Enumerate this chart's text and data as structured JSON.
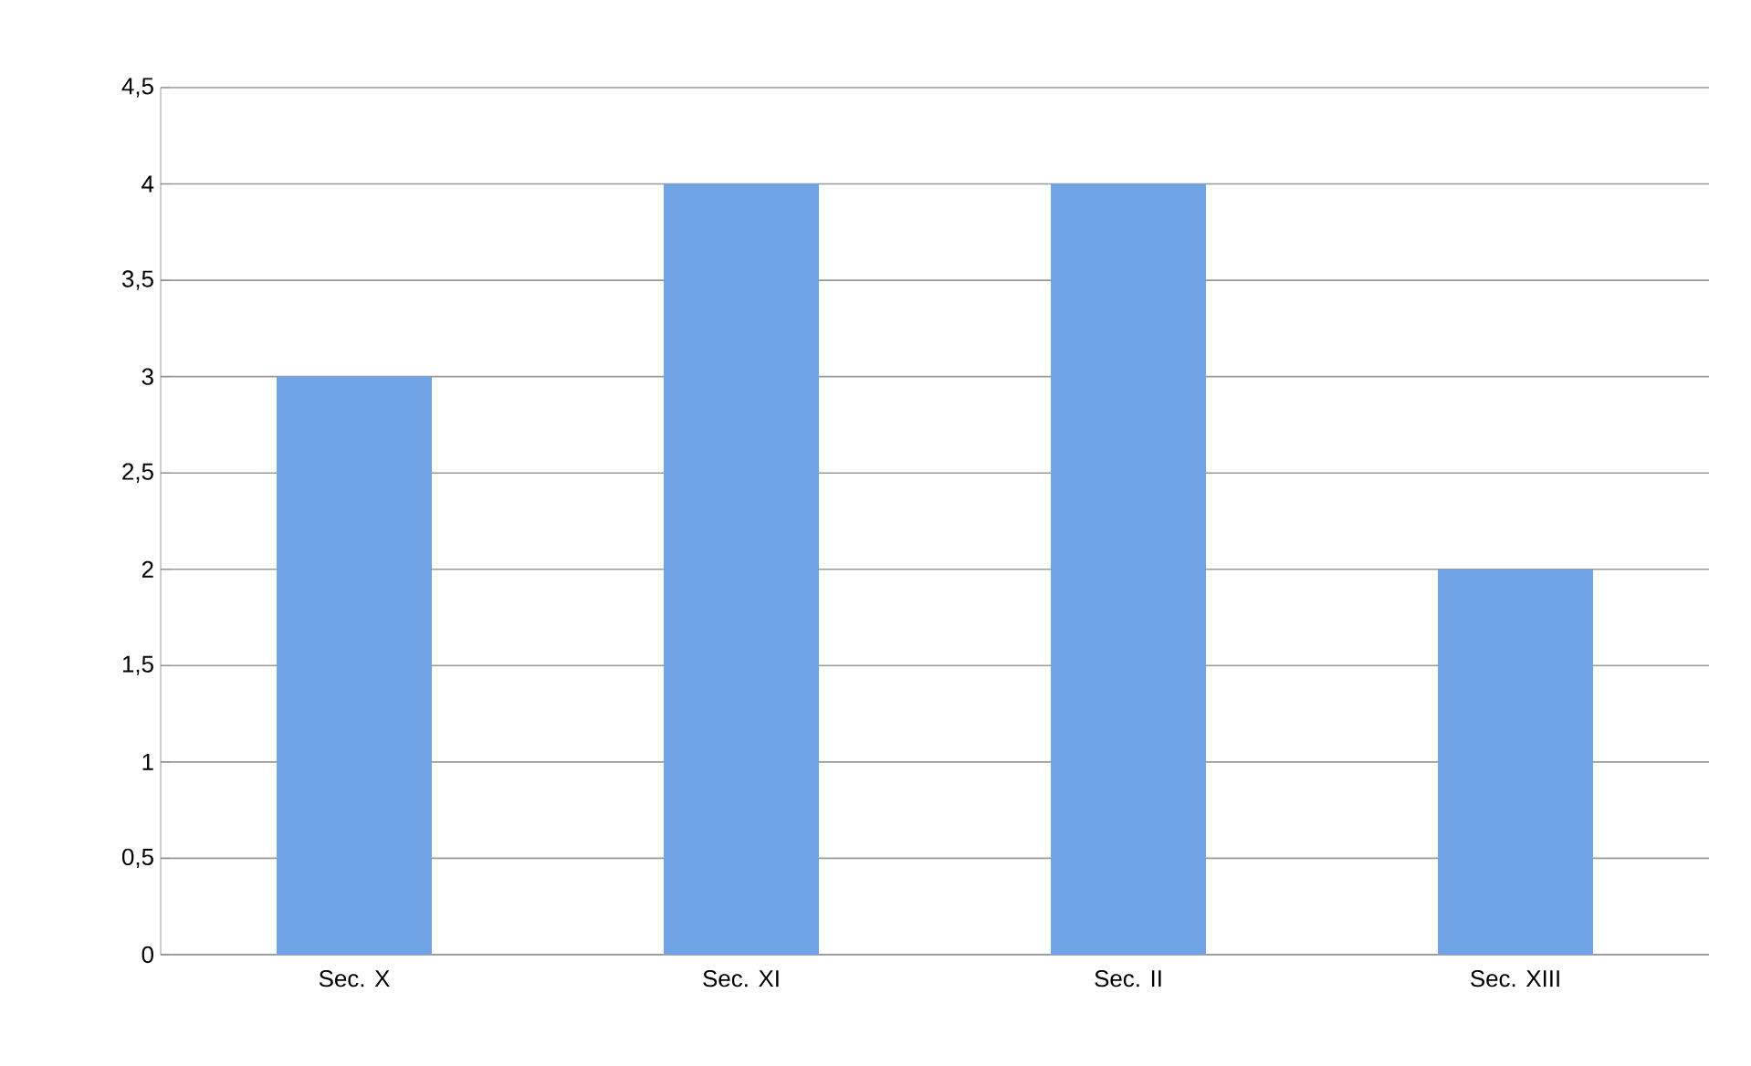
{
  "chart_data": {
    "type": "bar",
    "categories": [
      "Sec. X",
      "Sec. XI",
      "Sec. II",
      "Sec. XIII"
    ],
    "values": [
      3,
      4,
      4,
      2
    ],
    "color": "#6fa3e6",
    "ylim": [
      0,
      4.5
    ],
    "yticks": [
      0,
      {
        "value": 0.5,
        "label": "0,5"
      },
      1,
      {
        "value": 1.5,
        "label": "1,5"
      },
      2,
      {
        "value": 2.5,
        "label": "2,5"
      },
      3,
      {
        "value": 3.5,
        "label": "3,5"
      },
      4,
      {
        "value": 4.5,
        "label": "4,5"
      }
    ],
    "grid": "y"
  }
}
